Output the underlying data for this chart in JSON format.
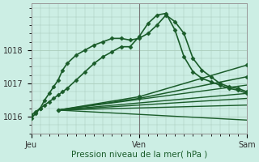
{
  "bg_color": "#cceee4",
  "grid_color": "#aaccbb",
  "line_color": "#1a5c2a",
  "xlabel": "Pression niveau de la mer( hPa )",
  "xlim": [
    0,
    48
  ],
  "ylim": [
    1015.5,
    1019.4
  ],
  "yticks": [
    1016,
    1017,
    1018
  ],
  "xtick_labels": [
    "Jeu",
    "Ven",
    "Sam"
  ],
  "xtick_positions": [
    0,
    24,
    48
  ],
  "series": [
    {
      "x": [
        0,
        1,
        2,
        3,
        4,
        5,
        6,
        7,
        8,
        10,
        12,
        14,
        16,
        18,
        20,
        22,
        24,
        26,
        28,
        30,
        32,
        34,
        36,
        38,
        40,
        42,
        44,
        46,
        48
      ],
      "y": [
        1015.95,
        1016.1,
        1016.25,
        1016.5,
        1016.7,
        1016.9,
        1017.1,
        1017.4,
        1017.6,
        1017.85,
        1018.0,
        1018.15,
        1018.25,
        1018.35,
        1018.35,
        1018.3,
        1018.35,
        1018.5,
        1018.75,
        1019.05,
        1018.85,
        1018.5,
        1017.75,
        1017.4,
        1017.2,
        1017.0,
        1016.9,
        1016.85,
        1016.75
      ],
      "marker": true,
      "lw": 1.2
    },
    {
      "x": [
        0,
        1,
        2,
        3,
        4,
        5,
        6,
        7,
        8,
        10,
        12,
        14,
        16,
        18,
        20,
        22,
        24,
        26,
        28,
        30,
        32,
        34,
        36,
        38,
        40,
        42,
        44,
        46,
        48
      ],
      "y": [
        1016.05,
        1016.15,
        1016.25,
        1016.35,
        1016.45,
        1016.55,
        1016.65,
        1016.75,
        1016.85,
        1017.1,
        1017.35,
        1017.6,
        1017.8,
        1017.95,
        1018.1,
        1018.1,
        1018.4,
        1018.8,
        1019.05,
        1019.1,
        1018.6,
        1017.8,
        1017.35,
        1017.15,
        1017.05,
        1016.95,
        1016.85,
        1016.8,
        1016.7
      ],
      "marker": true,
      "lw": 1.2
    },
    {
      "x": [
        6,
        24,
        48
      ],
      "y": [
        1016.2,
        1016.6,
        1017.55
      ],
      "marker": true,
      "lw": 1.1
    },
    {
      "x": [
        6,
        24,
        48
      ],
      "y": [
        1016.2,
        1016.55,
        1017.2
      ],
      "marker": true,
      "lw": 1.1
    },
    {
      "x": [
        6,
        48
      ],
      "y": [
        1016.2,
        1016.95
      ],
      "marker": false,
      "lw": 1.0
    },
    {
      "x": [
        6,
        48
      ],
      "y": [
        1016.2,
        1016.7
      ],
      "marker": false,
      "lw": 1.0
    },
    {
      "x": [
        6,
        48
      ],
      "y": [
        1016.2,
        1016.55
      ],
      "marker": false,
      "lw": 1.0
    },
    {
      "x": [
        6,
        48
      ],
      "y": [
        1016.2,
        1016.35
      ],
      "marker": false,
      "lw": 1.0
    },
    {
      "x": [
        6,
        48
      ],
      "y": [
        1016.2,
        1015.9
      ],
      "marker": false,
      "lw": 1.0
    }
  ],
  "vline_x": 24,
  "vline_color": "#777777"
}
